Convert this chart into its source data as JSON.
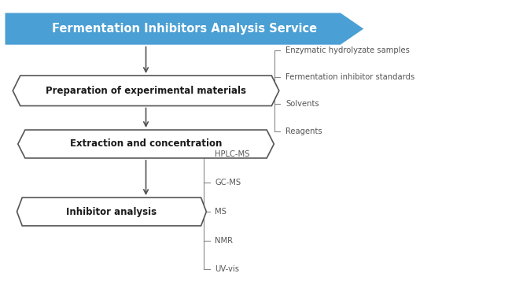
{
  "title": "Fermentation Inhibitors Analysis Service",
  "title_bg": "#4a9fd4",
  "title_text_color": "#ffffff",
  "box1_text": "Preparation of experimental materials",
  "box2_text": "Extraction and concentration",
  "box3_text": "Inhibitor analysis",
  "box_border_color": "#555555",
  "box_text_color": "#1a1a1a",
  "arrow_color": "#555555",
  "branch1_items": [
    "Enzymatic hydrolyzate samples",
    "Fermentation inhibitor standards",
    "Solvents",
    "Reagents"
  ],
  "branch2_items": [
    "HPLC-MS",
    "GC-MS",
    "MS",
    "NMR",
    "UV-vis"
  ],
  "branch_text_color": "#555555",
  "background_color": "#ffffff",
  "figsize": [
    6.51,
    3.66
  ],
  "dpi": 100
}
